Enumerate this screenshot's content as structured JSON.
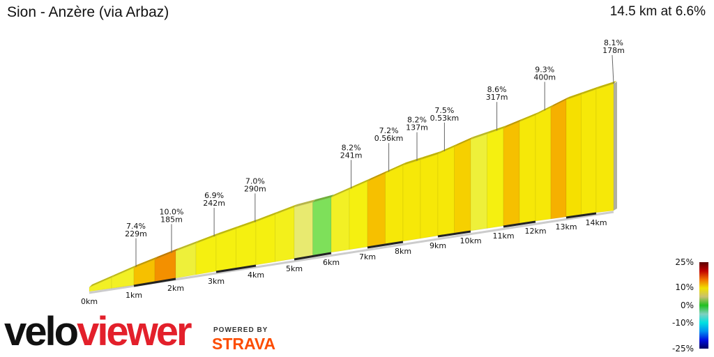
{
  "header": {
    "title": "Sion - Anzère (via Arbaz)",
    "summary": "14.5 km at 6.6%"
  },
  "branding": {
    "logo_part1": "velo",
    "logo_part2": "viewer",
    "powered_by": "POWERED BY",
    "strava": "STRAVA",
    "strava_color": "#fc4c02",
    "viewer_color": "#e3202b"
  },
  "chart_data": {
    "type": "area",
    "total_distance_km": 14.5,
    "average_gradient_pct": 6.6,
    "x_ticks": [
      "0km",
      "1km",
      "2km",
      "3km",
      "4km",
      "5km",
      "6km",
      "7km",
      "8km",
      "9km",
      "10km",
      "11km",
      "12km",
      "13km",
      "14km"
    ],
    "segment_length_km": 0.5,
    "segment_gradients_pct": [
      6,
      6,
      9,
      10.5,
      5,
      7,
      7,
      7,
      7,
      6.5,
      3,
      1,
      6,
      7,
      9,
      7.5,
      7.5,
      7.5,
      7.5,
      8.5,
      5,
      7,
      9,
      7.5,
      7.5,
      9.5,
      8,
      7.5,
      7.5
    ],
    "annotations": [
      {
        "km": 1.05,
        "gradient": "7.4%",
        "length": "229m"
      },
      {
        "km": 1.9,
        "gradient": "10.0%",
        "length": "185m"
      },
      {
        "km": 2.95,
        "gradient": "6.9%",
        "length": "242m"
      },
      {
        "km": 3.98,
        "gradient": "7.0%",
        "length": "290m"
      },
      {
        "km": 6.55,
        "gradient": "8.2%",
        "length": "241m"
      },
      {
        "km": 7.6,
        "gradient": "7.2%",
        "length": "0.56km"
      },
      {
        "km": 8.4,
        "gradient": "8.2%",
        "length": "137m"
      },
      {
        "km": 9.2,
        "gradient": "7.5%",
        "length": "0.53km"
      },
      {
        "km": 10.8,
        "gradient": "8.6%",
        "length": "317m"
      },
      {
        "km": 12.3,
        "gradient": "9.3%",
        "length": "400m"
      },
      {
        "km": 14.5,
        "gradient": "8.1%",
        "length": "178m"
      }
    ],
    "legend": {
      "labels": [
        "25%",
        "10%",
        "0%",
        "-10%",
        "-25%"
      ],
      "values": [
        25,
        10,
        0,
        -10,
        -25
      ],
      "colors": [
        "#5a0000",
        "#c00000",
        "#f07000",
        "#f0e000",
        "#c8c070",
        "#20c020",
        "#80d0c0",
        "#00e0e0",
        "#0090f0",
        "#0010e0",
        "#000060"
      ]
    }
  }
}
